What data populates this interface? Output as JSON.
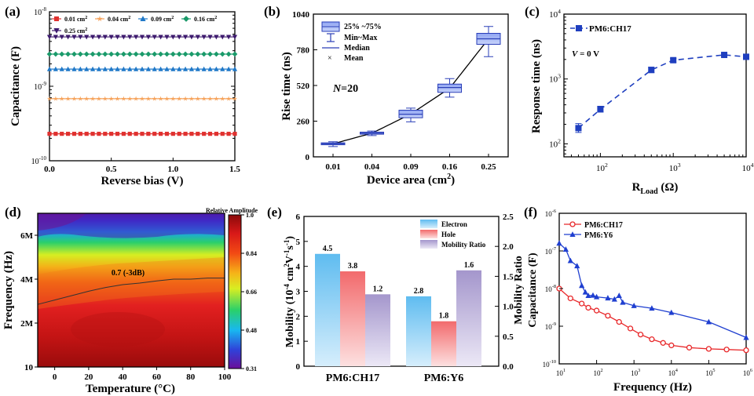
{
  "chart_data": [
    {
      "panel": "a",
      "panel_label": "(a)",
      "type": "line",
      "xlabel": "Reverse bias (V)",
      "ylabel": "Capacitance (F)",
      "xlim": [
        0,
        1.5
      ],
      "ylim_log": [
        1e-10,
        1e-08
      ],
      "yscale": "log",
      "xticks": [
        "0.0",
        "0.5",
        "1.0",
        "1.5"
      ],
      "yticks": [
        {
          "b": "10",
          "e": "-10",
          "v": -10
        },
        {
          "b": "10",
          "e": "-9",
          "v": -9
        },
        {
          "b": "10",
          "e": "-8",
          "v": -8
        }
      ],
      "series": [
        {
          "name": "0.01 cm²",
          "label": "0.01 cm",
          "sup": "2",
          "color": "#e0312f",
          "marker": "square",
          "value": 2.3e-10
        },
        {
          "name": "0.04 cm²",
          "label": "0.04 cm",
          "sup": "2",
          "color": "#f6a25a",
          "marker": "star",
          "value": 6.8e-10
        },
        {
          "name": "0.09 cm²",
          "label": "0.09 cm",
          "sup": "2",
          "color": "#1f78c8",
          "marker": "triangle",
          "value": 1.7e-09
        },
        {
          "name": "0.16 cm²",
          "label": "0.16 cm",
          "sup": "2",
          "color": "#1a9a6a",
          "marker": "diamond",
          "value": 2.7e-09
        },
        {
          "name": "0.25 cm²",
          "label": "0.25 cm",
          "sup": "2",
          "color": "#3d1a6e",
          "marker": "triangle-down",
          "value": 4.6e-09
        }
      ]
    },
    {
      "panel": "b",
      "panel_label": "(b)",
      "type": "box",
      "xlabel": "Device area (cm",
      "xlabel_sup": "2",
      "xlabel_end": ")",
      "ylabel": "Rise time (ns)",
      "categories": [
        "0.01",
        "0.04",
        "0.09",
        "0.16",
        "0.25"
      ],
      "ylim": [
        0,
        1040
      ],
      "yticks": [
        "0",
        "260",
        "520",
        "780",
        "1040"
      ],
      "annotation": "N=20",
      "annotation_italic": "N",
      "annotation_rest": "=20",
      "legend": [
        "25% ~75%",
        "Min~Max",
        "Median",
        "Mean"
      ],
      "boxes": [
        {
          "min": 75,
          "q1": 88,
          "median": 95,
          "q3": 102,
          "max": 110,
          "mean": 95
        },
        {
          "min": 155,
          "q1": 165,
          "median": 172,
          "q3": 180,
          "max": 188,
          "mean": 172
        },
        {
          "min": 255,
          "q1": 285,
          "median": 310,
          "q3": 340,
          "max": 355,
          "mean": 312
        },
        {
          "min": 435,
          "q1": 470,
          "median": 505,
          "q3": 530,
          "max": 570,
          "mean": 500
        },
        {
          "min": 730,
          "q1": 820,
          "median": 860,
          "q3": 900,
          "max": 950,
          "mean": 860
        }
      ],
      "fit_color": "#000000",
      "box_color": "#5b7bdc"
    },
    {
      "panel": "c",
      "panel_label": "(c)",
      "type": "line",
      "xlabel": "R",
      "xlabel_sub": "Load",
      "xlabel_end": " (Ω)",
      "ylabel": "Response time (ns)",
      "xscale": "log",
      "yscale": "log",
      "xlim_log": [
        1.5,
        4
      ],
      "ylim_log": [
        1.8,
        4
      ],
      "xticks": [
        {
          "b": "10",
          "e": "2",
          "v": 2
        },
        {
          "b": "10",
          "e": "3",
          "v": 3
        },
        {
          "b": "10",
          "e": "4",
          "v": 4
        }
      ],
      "yticks": [
        {
          "b": "10",
          "e": "2",
          "v": 2
        },
        {
          "b": "10",
          "e": "3",
          "v": 3
        },
        {
          "b": "10",
          "e": "4",
          "v": 4
        }
      ],
      "legend": "PM6:CH17",
      "annotation": "V = 0 V",
      "annotation_italic": "V",
      "annotation_rest": " = 0 V",
      "x": [
        50,
        100,
        500,
        1000,
        5000,
        10000
      ],
      "y": [
        175,
        340,
        1380,
        1950,
        2350,
        2200
      ],
      "yerr_hi": [
        205,
        380,
        1520,
        2080,
        2450,
        2400
      ],
      "yerr_lo": [
        150,
        310,
        1250,
        1820,
        2250,
        2000
      ],
      "color": "#1f3fbf"
    },
    {
      "panel": "d",
      "panel_label": "(d)",
      "type": "heatmap",
      "xlabel": "Temperature (°C)",
      "ylabel": "Frequency (Hz)",
      "xlim": [
        -10,
        100
      ],
      "xticks": [
        "0",
        "20",
        "40",
        "60",
        "80",
        "100"
      ],
      "yticks": [
        "10",
        "2M",
        "4M",
        "6M"
      ],
      "ylim": [
        0,
        7000000
      ],
      "colorbar_title": "Relative Amplitude",
      "colorbar_ticks": [
        "0.31",
        "0.48",
        "0.66",
        "0.84",
        "1.0"
      ],
      "contour_label": "0.7 (-3dB)",
      "contour_temp": [
        -10,
        0,
        10,
        20,
        30,
        40,
        50,
        60,
        70,
        80,
        90,
        100
      ],
      "contour_freq": [
        2850000.0,
        3050000.0,
        3250000.0,
        3450000.0,
        3620000.0,
        3750000.0,
        3820000.0,
        3920000.0,
        4000000.0,
        4000000.0,
        4050000.0,
        4050000.0
      ]
    },
    {
      "panel": "e",
      "panel_label": "(e)",
      "type": "bar",
      "ylabel": "Mobility (10",
      "ylabel_sup1": "-4",
      "ylabel_mid": " cm",
      "ylabel_sup2": "2",
      "ylabel_mid2": "V",
      "ylabel_sup3": "-1",
      "ylabel_mid3": "s",
      "ylabel_sup4": "-1",
      "ylabel_end": ")",
      "y2label": "Mobility Ratio",
      "categories": [
        "PM6:CH17",
        "PM6:Y6"
      ],
      "ylim": [
        0,
        6
      ],
      "yticks": [
        "0",
        "1",
        "2",
        "3",
        "4",
        "5",
        "6"
      ],
      "y2lim": [
        0,
        2.5
      ],
      "y2ticks": [
        "0.0",
        "0.5",
        "1.0",
        "1.5",
        "2.0",
        "2.5"
      ],
      "series": [
        {
          "name": "Electron",
          "values": [
            4.5,
            2.8
          ],
          "labels": [
            "4.5",
            "2.8"
          ],
          "color": "#6cc4f2",
          "axis": "left"
        },
        {
          "name": "Hole",
          "values": [
            3.8,
            1.8
          ],
          "labels": [
            "3.8",
            "1.8"
          ],
          "color": "#f47b7c",
          "axis": "left"
        },
        {
          "name": "Mobility Ratio",
          "values": [
            1.2,
            1.6
          ],
          "labels": [
            "1.2",
            "1.6"
          ],
          "color": "#b3a7d4",
          "axis": "right"
        }
      ]
    },
    {
      "panel": "f",
      "panel_label": "(f)",
      "type": "line",
      "xlabel": "Frequency (Hz)",
      "ylabel": "Capacitance (F)",
      "xscale": "log",
      "yscale": "log",
      "xlim_log": [
        1,
        6
      ],
      "ylim_log": [
        -10,
        -6
      ],
      "xticks": [
        {
          "b": "10",
          "e": "1",
          "v": 1
        },
        {
          "b": "10",
          "e": "2",
          "v": 2
        },
        {
          "b": "10",
          "e": "3",
          "v": 3
        },
        {
          "b": "10",
          "e": "4",
          "v": 4
        },
        {
          "b": "10",
          "e": "5",
          "v": 5
        },
        {
          "b": "10",
          "e": "6",
          "v": 6
        }
      ],
      "yticks": [
        {
          "b": "10",
          "e": "-10",
          "v": -10
        },
        {
          "b": "10",
          "e": "-9",
          "v": -9
        },
        {
          "b": "10",
          "e": "-8",
          "v": -8
        },
        {
          "b": "10",
          "e": "-7",
          "v": -7
        },
        {
          "b": "10",
          "e": "-6",
          "v": -6
        }
      ],
      "series": [
        {
          "name": "PM6:CH17",
          "color": "#e8282a",
          "marker": "circle",
          "x": [
            10,
            20,
            40,
            60,
            100,
            200,
            400,
            800,
            1500,
            3000,
            6000,
            10000,
            30000,
            100000,
            300000,
            1000000
          ],
          "y": [
            1e-08,
            5.5e-09,
            4e-09,
            3.1e-09,
            2.6e-09,
            1.9e-09,
            1.3e-09,
            8.7e-10,
            6e-10,
            4.5e-10,
            3.6e-10,
            3.1e-10,
            2.7e-10,
            2.5e-10,
            2.4e-10,
            2.3e-10
          ]
        },
        {
          "name": "PM6:Y6",
          "color": "#1f3fd0",
          "marker": "triangle",
          "x": [
            10,
            15,
            20,
            30,
            40,
            50,
            60,
            80,
            100,
            200,
            300,
            400,
            500,
            1000,
            3000,
            10000,
            100000,
            1000000
          ],
          "y": [
            1.6e-07,
            1.1e-07,
            5.5e-08,
            4e-08,
            1.2e-08,
            8e-09,
            6.5e-09,
            6.6e-09,
            6e-09,
            5.6e-09,
            5.2e-09,
            6.5e-09,
            4.3e-09,
            3.5e-09,
            3e-09,
            2.3e-09,
            1.3e-09,
            5e-10
          ]
        }
      ]
    }
  ]
}
